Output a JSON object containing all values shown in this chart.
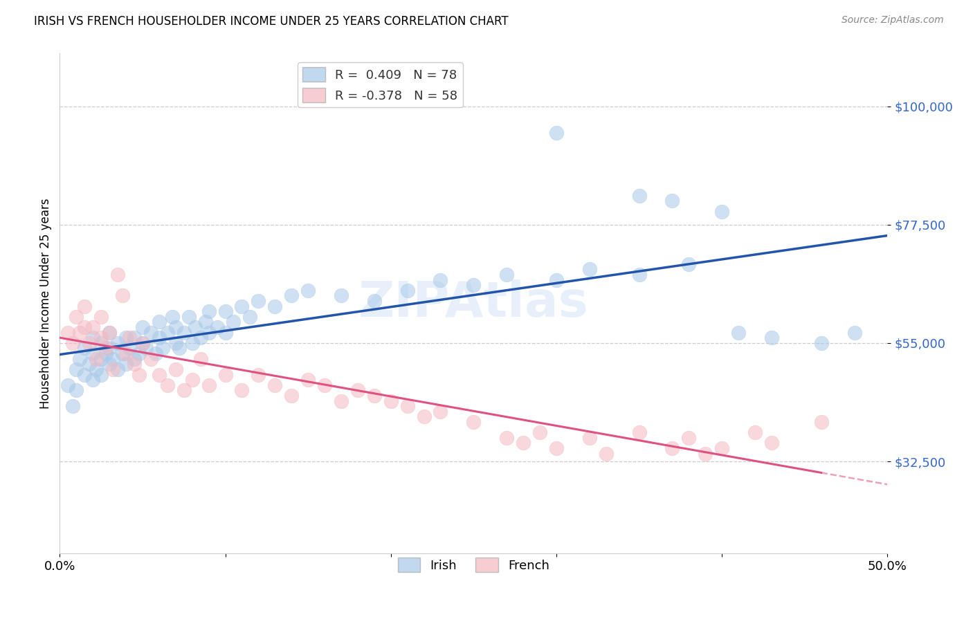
{
  "title": "IRISH VS FRENCH HOUSEHOLDER INCOME UNDER 25 YEARS CORRELATION CHART",
  "source": "Source: ZipAtlas.com",
  "ylabel": "Householder Income Under 25 years",
  "xlim": [
    0.0,
    0.5
  ],
  "ylim": [
    15000,
    110000
  ],
  "yticks": [
    32500,
    55000,
    77500,
    100000
  ],
  "ytick_labels": [
    "$32,500",
    "$55,000",
    "$77,500",
    "$100,000"
  ],
  "xticks": [
    0.0,
    0.1,
    0.2,
    0.3,
    0.4,
    0.5
  ],
  "xtick_labels": [
    "0.0%",
    "",
    "",
    "",
    "",
    "50.0%"
  ],
  "irish_color": "#a8c8e8",
  "french_color": "#f4b8c0",
  "irish_line_color": "#2255aa",
  "french_line_color": "#e05080",
  "irish_R": 0.409,
  "irish_N": 78,
  "french_R": -0.378,
  "french_N": 58,
  "background_color": "#ffffff",
  "grid_color": "#cccccc",
  "irish_x": [
    0.005,
    0.008,
    0.01,
    0.01,
    0.012,
    0.015,
    0.015,
    0.018,
    0.02,
    0.02,
    0.02,
    0.022,
    0.025,
    0.025,
    0.025,
    0.028,
    0.03,
    0.03,
    0.03,
    0.032,
    0.035,
    0.035,
    0.038,
    0.04,
    0.04,
    0.042,
    0.045,
    0.045,
    0.048,
    0.05,
    0.05,
    0.052,
    0.055,
    0.058,
    0.06,
    0.06,
    0.062,
    0.065,
    0.068,
    0.07,
    0.07,
    0.072,
    0.075,
    0.078,
    0.08,
    0.082,
    0.085,
    0.088,
    0.09,
    0.09,
    0.095,
    0.1,
    0.1,
    0.105,
    0.11,
    0.115,
    0.12,
    0.13,
    0.14,
    0.15,
    0.17,
    0.19,
    0.21,
    0.23,
    0.25,
    0.27,
    0.3,
    0.32,
    0.35,
    0.38,
    0.41,
    0.43,
    0.46,
    0.48,
    0.3,
    0.35,
    0.37,
    0.4
  ],
  "irish_y": [
    47000,
    43000,
    50000,
    46000,
    52000,
    49000,
    54000,
    51000,
    48000,
    53000,
    56000,
    50000,
    52000,
    55000,
    49000,
    53000,
    51000,
    54000,
    57000,
    52000,
    55000,
    50000,
    53000,
    56000,
    51000,
    54000,
    52000,
    56000,
    53000,
    55000,
    58000,
    54000,
    57000,
    53000,
    56000,
    59000,
    54000,
    57000,
    60000,
    55000,
    58000,
    54000,
    57000,
    60000,
    55000,
    58000,
    56000,
    59000,
    57000,
    61000,
    58000,
    57000,
    61000,
    59000,
    62000,
    60000,
    63000,
    62000,
    64000,
    65000,
    64000,
    63000,
    65000,
    67000,
    66000,
    68000,
    67000,
    69000,
    68000,
    70000,
    57000,
    56000,
    55000,
    57000,
    95000,
    83000,
    82000,
    80000
  ],
  "french_x": [
    0.005,
    0.008,
    0.01,
    0.012,
    0.015,
    0.015,
    0.018,
    0.02,
    0.022,
    0.025,
    0.025,
    0.028,
    0.03,
    0.032,
    0.035,
    0.038,
    0.04,
    0.042,
    0.045,
    0.048,
    0.05,
    0.055,
    0.06,
    0.065,
    0.07,
    0.075,
    0.08,
    0.085,
    0.09,
    0.1,
    0.11,
    0.12,
    0.13,
    0.14,
    0.15,
    0.16,
    0.17,
    0.18,
    0.19,
    0.2,
    0.21,
    0.22,
    0.23,
    0.25,
    0.27,
    0.28,
    0.29,
    0.3,
    0.32,
    0.33,
    0.35,
    0.37,
    0.38,
    0.39,
    0.4,
    0.42,
    0.43,
    0.46
  ],
  "french_y": [
    57000,
    55000,
    60000,
    57000,
    58000,
    62000,
    55000,
    58000,
    52000,
    56000,
    60000,
    54000,
    57000,
    50000,
    68000,
    64000,
    53000,
    56000,
    51000,
    49000,
    55000,
    52000,
    49000,
    47000,
    50000,
    46000,
    48000,
    52000,
    47000,
    49000,
    46000,
    49000,
    47000,
    45000,
    48000,
    47000,
    44000,
    46000,
    45000,
    44000,
    43000,
    41000,
    42000,
    40000,
    37000,
    36000,
    38000,
    35000,
    37000,
    34000,
    38000,
    35000,
    37000,
    34000,
    35000,
    38000,
    36000,
    40000
  ]
}
